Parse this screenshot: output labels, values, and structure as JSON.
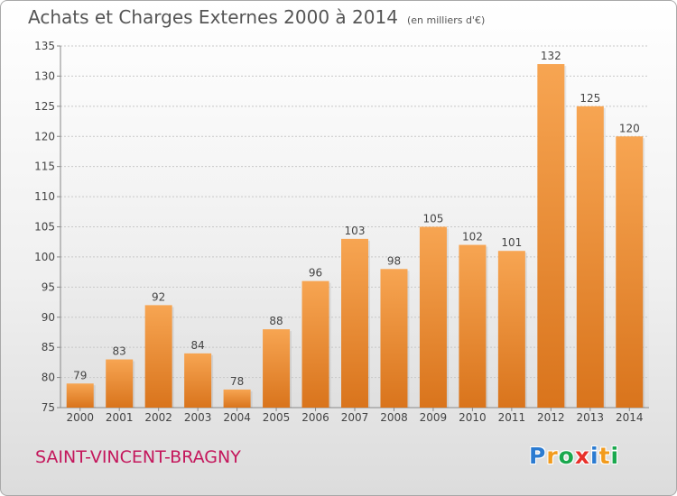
{
  "header": {
    "title": "Achats et Charges Externes 2000 à 2014",
    "unit": "(en milliers d'€)"
  },
  "footer": {
    "town": "SAINT-VINCENT-BRAGNY",
    "logo": [
      {
        "ch": "P",
        "color": "#2b7bd1"
      },
      {
        "ch": "r",
        "color": "#f29b1d"
      },
      {
        "ch": "o",
        "color": "#1aa84e"
      },
      {
        "ch": "x",
        "color": "#e8312b"
      },
      {
        "ch": "i",
        "color": "#2b7bd1"
      },
      {
        "ch": "t",
        "color": "#f29b1d"
      },
      {
        "ch": "i",
        "color": "#1aa84e"
      }
    ]
  },
  "chart_data": {
    "type": "bar",
    "title": "Achats et Charges Externes 2000 à 2014",
    "subtitle": "(en milliers d'€)",
    "categories": [
      "2000",
      "2001",
      "2002",
      "2003",
      "2004",
      "2005",
      "2006",
      "2007",
      "2008",
      "2009",
      "2010",
      "2011",
      "2012",
      "2013",
      "2014"
    ],
    "values": [
      79,
      83,
      92,
      84,
      78,
      88,
      96,
      103,
      98,
      105,
      102,
      101,
      132,
      125,
      120
    ],
    "ylim": [
      75,
      135
    ],
    "yticks": [
      75,
      80,
      85,
      90,
      95,
      100,
      105,
      110,
      115,
      120,
      125,
      130,
      135
    ],
    "xlabel": "",
    "ylabel": "",
    "grid": true,
    "bar_color": "#f0943a"
  }
}
